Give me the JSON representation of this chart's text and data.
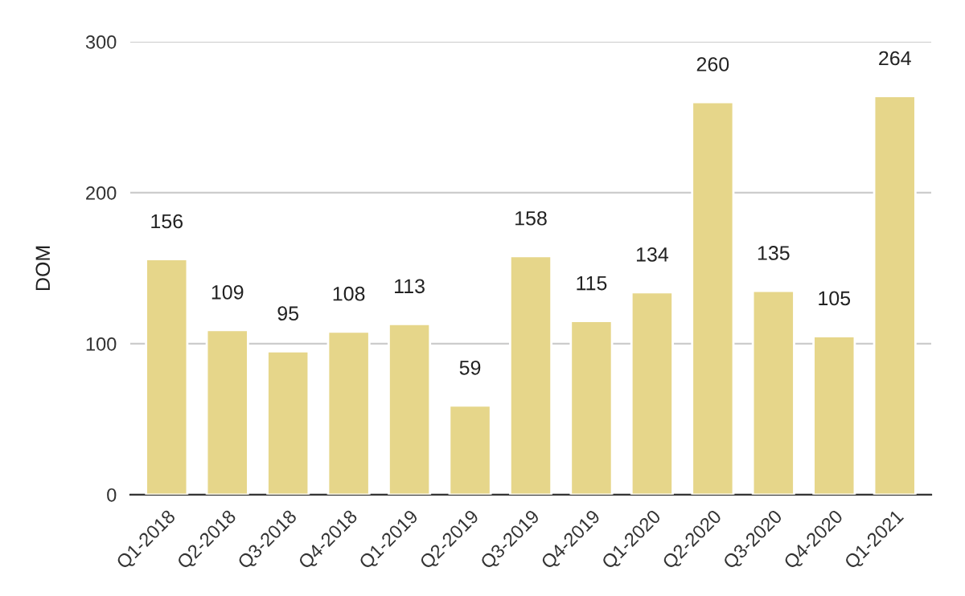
{
  "chart_data": {
    "type": "bar",
    "ylabel": "DOM",
    "categories": [
      "Q1-2018",
      "Q2-2018",
      "Q3-2018",
      "Q4-2018",
      "Q1-2019",
      "Q2-2019",
      "Q3-2019",
      "Q4-2019",
      "Q1-2020",
      "Q2-2020",
      "Q3-2020",
      "Q4-2020",
      "Q1-2021"
    ],
    "values": [
      156,
      109,
      95,
      108,
      113,
      59,
      158,
      115,
      134,
      260,
      135,
      105,
      264
    ],
    "color": "#e6d68a",
    "ylim": [
      0,
      300
    ],
    "yticks": [
      0,
      100,
      200,
      300
    ],
    "grid": "y",
    "data_labels": true
  }
}
